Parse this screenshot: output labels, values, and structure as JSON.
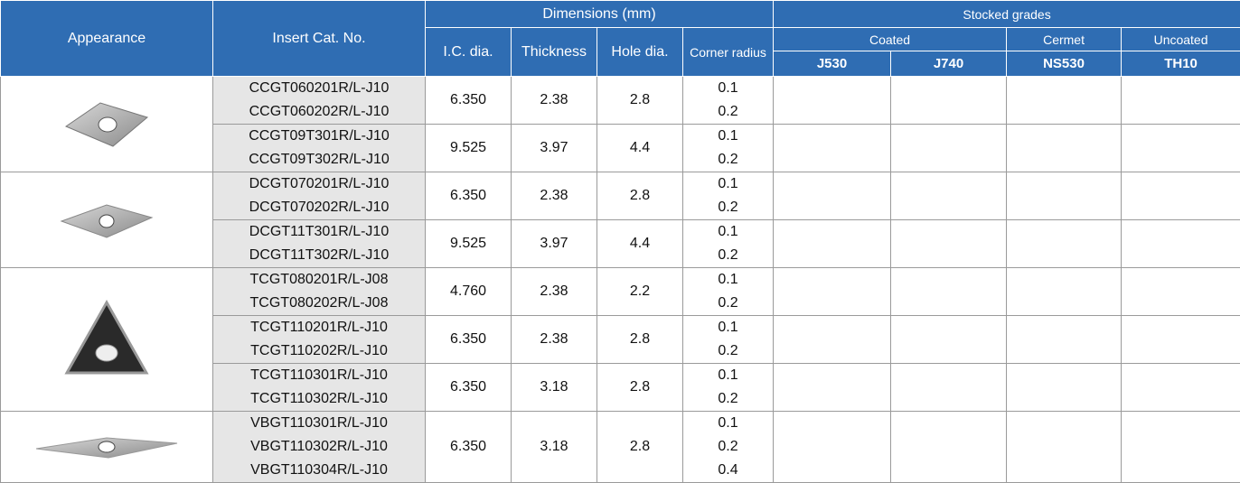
{
  "header": {
    "appearance": "Appearance",
    "catalog_no": "Insert Cat. No.",
    "dimensions": "Dimensions (mm)",
    "ic_dia": "I.C. dia.",
    "thickness": "Thickness",
    "hole_dia": "Hole dia.",
    "corner_radius": "Corner radius",
    "stocked_grades": "Stocked grades",
    "coated": "Coated",
    "cermet": "Cermet",
    "uncoated": "Uncoated",
    "grades": [
      "J530",
      "J740",
      "NS530",
      "TH10"
    ]
  },
  "families": [
    {
      "groups": [
        {
          "catalog_nos": [
            "CCGT060201R/L-J10",
            "CCGT060202R/L-J10"
          ],
          "ic_dia": "6.350",
          "thickness": "2.38",
          "hole_dia": "2.8",
          "corner_radius": [
            "0.1",
            "0.2"
          ]
        },
        {
          "catalog_nos": [
            "CCGT09T301R/L-J10",
            "CCGT09T302R/L-J10"
          ],
          "ic_dia": "9.525",
          "thickness": "3.97",
          "hole_dia": "4.4",
          "corner_radius": [
            "0.1",
            "0.2"
          ]
        }
      ]
    },
    {
      "groups": [
        {
          "catalog_nos": [
            "DCGT070201R/L-J10",
            "DCGT070202R/L-J10"
          ],
          "ic_dia": "6.350",
          "thickness": "2.38",
          "hole_dia": "2.8",
          "corner_radius": [
            "0.1",
            "0.2"
          ]
        },
        {
          "catalog_nos": [
            "DCGT11T301R/L-J10",
            "DCGT11T302R/L-J10"
          ],
          "ic_dia": "9.525",
          "thickness": "3.97",
          "hole_dia": "4.4",
          "corner_radius": [
            "0.1",
            "0.2"
          ]
        }
      ]
    },
    {
      "groups": [
        {
          "catalog_nos": [
            "TCGT080201R/L-J08",
            "TCGT080202R/L-J08"
          ],
          "ic_dia": "4.760",
          "thickness": "2.38",
          "hole_dia": "2.2",
          "corner_radius": [
            "0.1",
            "0.2"
          ]
        },
        {
          "catalog_nos": [
            "TCGT110201R/L-J10",
            "TCGT110202R/L-J10"
          ],
          "ic_dia": "6.350",
          "thickness": "2.38",
          "hole_dia": "2.8",
          "corner_radius": [
            "0.1",
            "0.2"
          ]
        },
        {
          "catalog_nos": [
            "TCGT110301R/L-J10",
            "TCGT110302R/L-J10"
          ],
          "ic_dia": "6.350",
          "thickness": "3.18",
          "hole_dia": "2.8",
          "corner_radius": [
            "0.1",
            "0.2"
          ]
        }
      ]
    },
    {
      "groups": [
        {
          "catalog_nos": [
            "VBGT110301R/L-J10",
            "VBGT110302R/L-J10",
            "VBGT110304R/L-J10"
          ],
          "ic_dia": "6.350",
          "thickness": "3.18",
          "hole_dia": "2.8",
          "corner_radius": [
            "0.1",
            "0.2",
            "0.4"
          ]
        }
      ]
    }
  ]
}
